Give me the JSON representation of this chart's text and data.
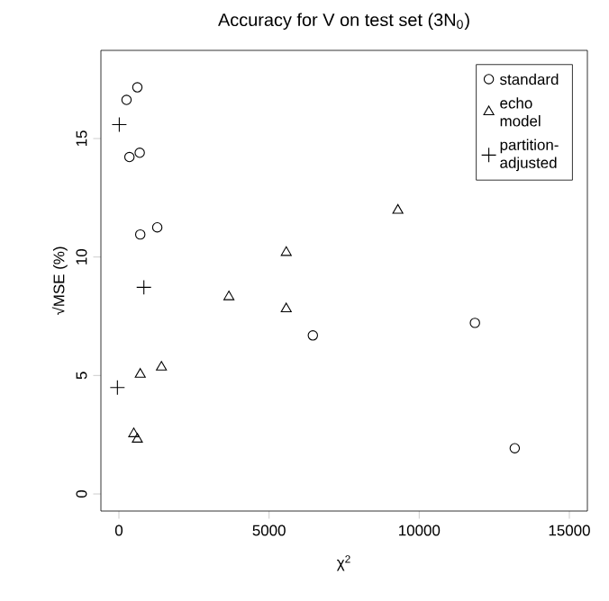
{
  "chart_data": {
    "type": "scatter",
    "title": "Accuracy for V on test set (3N$_{0}$)",
    "xlabel": "χ$^{2}$",
    "ylabel": "√MSE  (%)",
    "xlim": [
      -600,
      15600
    ],
    "ylim": [
      -0.72,
      18.72
    ],
    "xticks": [
      0,
      5000,
      10000,
      15000
    ],
    "yticks": [
      0,
      5,
      10,
      15
    ],
    "grid": false,
    "legend": "top right",
    "series": [
      {
        "name": "standard",
        "color": "#000000",
        "marker": "circle",
        "x": [
          614,
          253,
          350,
          693,
          711,
          1277,
          6458,
          11855,
          13181
        ],
        "values": [
          17.16,
          16.63,
          14.22,
          14.4,
          10.95,
          11.25,
          6.69,
          7.22,
          1.93
        ]
      },
      {
        "name": "echo model",
        "color": "#000000",
        "marker": "triangle",
        "x": [
          5572,
          3663,
          5572,
          711,
          1416,
          494,
          614,
          9289
        ],
        "values": [
          10.19,
          8.32,
          7.81,
          5.05,
          5.35,
          2.54,
          2.31,
          11.97
        ]
      },
      {
        "name": "partition-adjusted",
        "color": "#000000",
        "marker": "cross",
        "x": [
          12,
          831,
          -50
        ],
        "values": [
          15.59,
          8.72,
          4.49
        ]
      }
    ]
  }
}
